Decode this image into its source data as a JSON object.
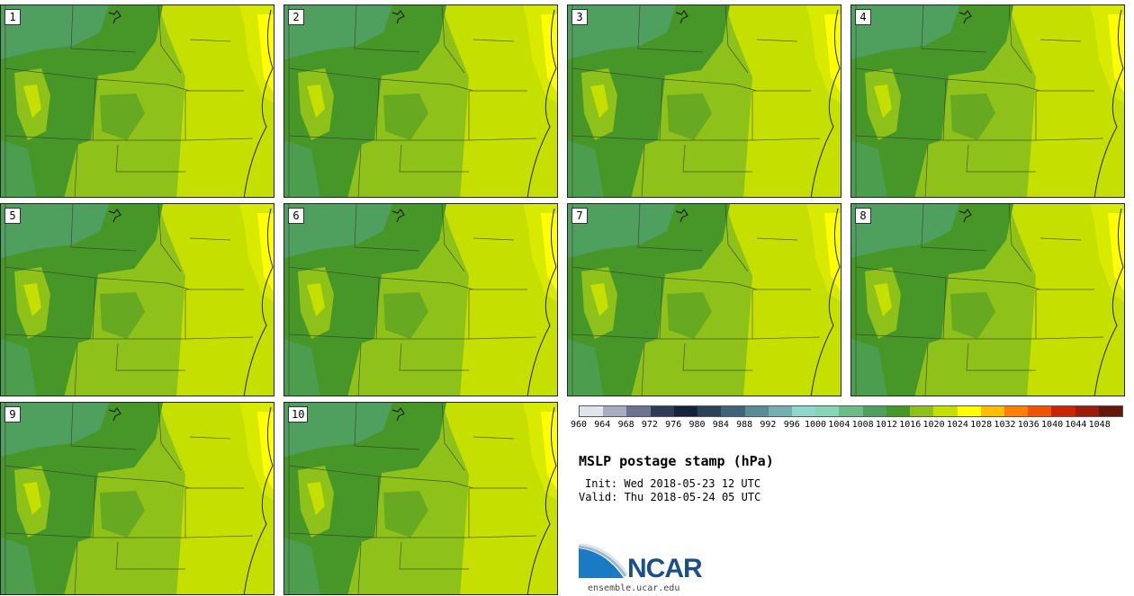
{
  "stamps": [
    {
      "member": "1"
    },
    {
      "member": "2"
    },
    {
      "member": "3"
    },
    {
      "member": "4"
    },
    {
      "member": "5"
    },
    {
      "member": "6"
    },
    {
      "member": "7"
    },
    {
      "member": "8"
    },
    {
      "member": "9"
    },
    {
      "member": "10"
    }
  ],
  "colorbar": {
    "colors": [
      "#e1e4ec",
      "#a7adbf",
      "#6b7390",
      "#2f3a56",
      "#14233a",
      "#2a4258",
      "#3f6478",
      "#5a8c97",
      "#74b0b2",
      "#8fd6cc",
      "#86d5b5",
      "#6dbc86",
      "#4f9f5e",
      "#479728",
      "#8ec11a",
      "#c4df00",
      "#ffff00",
      "#ffbf00",
      "#ff8000",
      "#f35300",
      "#c92500",
      "#9c1c0c",
      "#64180a"
    ],
    "labels": [
      "960",
      "964",
      "968",
      "972",
      "976",
      "980",
      "984",
      "988",
      "992",
      "996",
      "1000",
      "1004",
      "1008",
      "1012",
      "1016",
      "1020",
      "1024",
      "1028",
      "1032",
      "1036",
      "1040",
      "1044",
      "1048"
    ]
  },
  "title": "MSLP postage stamp (hPa)",
  "init": "Init: Wed 2018-05-23 12 UTC",
  "valid": "Valid: Thu 2018-05-24 05 UTC",
  "logo": {
    "name": "NCAR",
    "url": "ensemble.ucar.edu"
  }
}
